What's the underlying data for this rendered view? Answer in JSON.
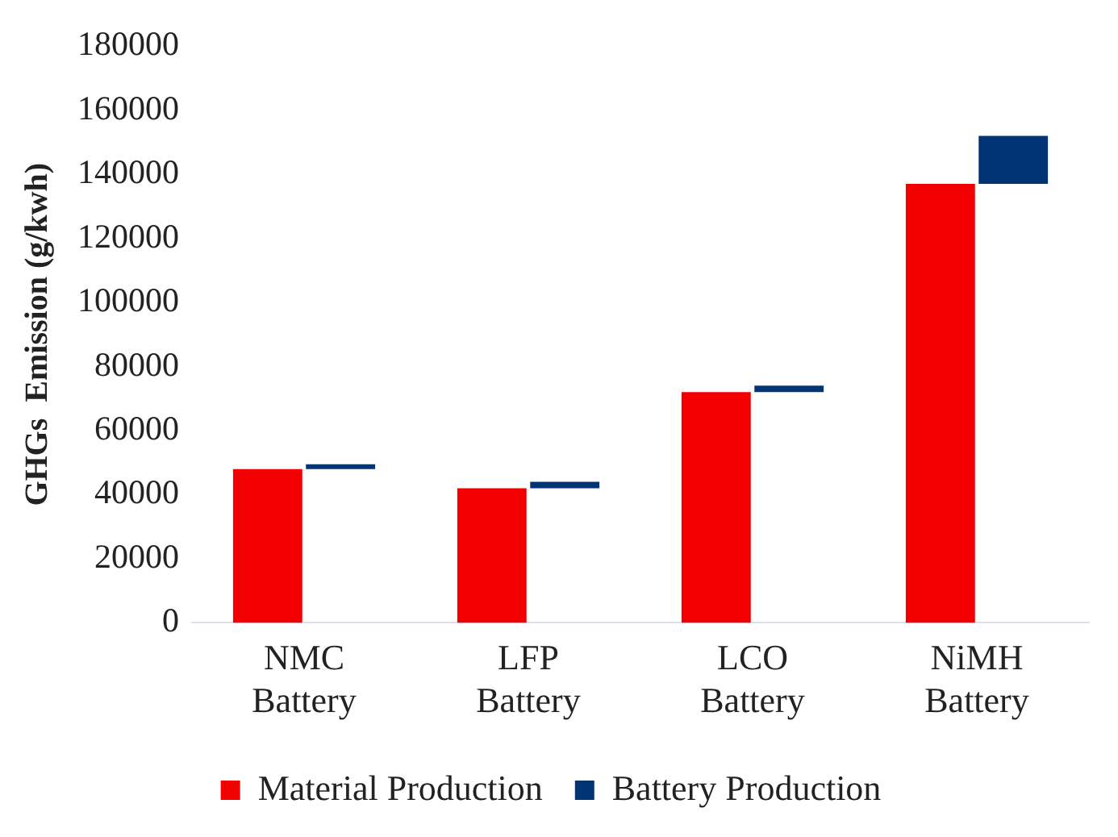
{
  "chart_data": {
    "type": "bar",
    "ylabel": "GHGs  Emission (g/kwh)",
    "categories": [
      "NMC\nBattery",
      "LFP\nBattery",
      "LCO\nBattery",
      "NiMH\nBattery"
    ],
    "series": [
      {
        "name": "Material Production",
        "color": "#f20000",
        "values": [
          48000,
          42000,
          72000,
          137000
        ]
      },
      {
        "name": "Battery Production",
        "color": "#003473",
        "values": [
          1500,
          2000,
          2000,
          15000
        ],
        "base": [
          48000,
          42000,
          72000,
          137000
        ]
      }
    ],
    "ylim": [
      0,
      180000
    ],
    "yticks": [
      0,
      20000,
      40000,
      60000,
      80000,
      100000,
      120000,
      140000,
      160000,
      180000
    ],
    "grid": false,
    "legend": "bottom"
  }
}
